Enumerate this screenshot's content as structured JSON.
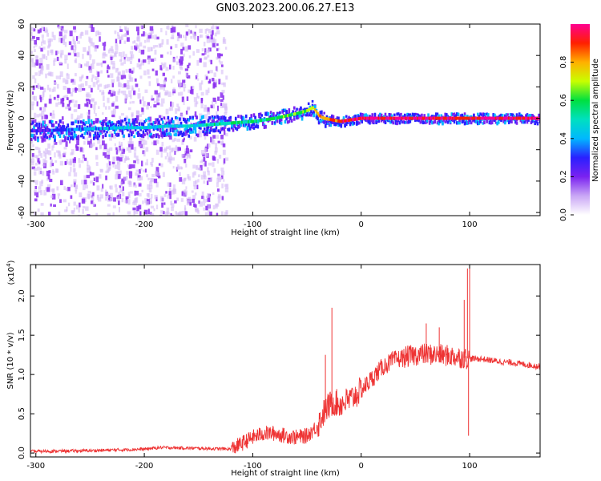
{
  "title": "GN03.2023.200.06.27.E13",
  "chart_data": [
    {
      "type": "heatmap",
      "xlabel": "Height of straight line (km)",
      "ylabel": "Frequency (Hz)",
      "xlim": [
        -305,
        165
      ],
      "ylim": [
        -62,
        60
      ],
      "x_ticks": [
        -300,
        -200,
        -100,
        0,
        100
      ],
      "y_ticks": [
        -60,
        -40,
        -20,
        0,
        20,
        40,
        60
      ],
      "colorbar": {
        "label": "Normalized spectral amplitude",
        "ticks": [
          "0.0",
          "0.2",
          "0.4",
          "0.6",
          "0.8"
        ],
        "range": [
          0,
          1
        ],
        "colormap": [
          "#ffffff",
          "#c9a6f5",
          "#7a22f0",
          "#2a20ff",
          "#00b8ff",
          "#00e0c0",
          "#00e040",
          "#c8ff00",
          "#ffb000",
          "#ff2000",
          "#ff0090"
        ]
      },
      "ridge": {
        "x": [
          -300,
          -260,
          -220,
          -200,
          -180,
          -160,
          -140,
          -120,
          -100,
          -80,
          -60,
          -50,
          -45,
          -40,
          -35,
          -20,
          -10,
          0,
          50,
          100,
          165
        ],
        "freq": [
          -8,
          -7,
          -6,
          -6,
          -5,
          -5,
          -4,
          -3,
          -2,
          0,
          3,
          5,
          7,
          2,
          0,
          -2,
          -1,
          0,
          0,
          0,
          0
        ],
        "amplitude": [
          0.25,
          0.35,
          0.45,
          0.45,
          0.45,
          0.45,
          0.5,
          0.55,
          0.55,
          0.6,
          0.6,
          0.65,
          0.7,
          0.8,
          0.85,
          0.9,
          0.92,
          0.95,
          0.95,
          0.95,
          0.95
        ]
      },
      "noise_region_x": [
        -305,
        -125
      ]
    },
    {
      "type": "line",
      "xlabel": "Height of straight line (km)",
      "ylabel": "SNR (10 * v/v)",
      "y_multiplier": "(x10",
      "y_multiplier_exp": "4",
      "xlim": [
        -305,
        165
      ],
      "ylim": [
        -0.05,
        2.4
      ],
      "x_ticks": [
        -300,
        -200,
        -100,
        0,
        100
      ],
      "y_ticks": [
        "0.0",
        "0.5",
        "1.0",
        "1.5",
        "2.0"
      ],
      "line_color": "#ee3333",
      "series": [
        {
          "x": [
            -305,
            -250,
            -200,
            -185,
            -150,
            -120,
            -110,
            -100,
            -90,
            -80,
            -70,
            -60,
            -50,
            -40,
            -35,
            -30,
            -25,
            -20,
            -10,
            0,
            10,
            20,
            30,
            40,
            50,
            60,
            70,
            80,
            90,
            100,
            110,
            120,
            130,
            140,
            150,
            165
          ],
          "y": [
            0.02,
            0.03,
            0.05,
            0.07,
            0.06,
            0.05,
            0.12,
            0.2,
            0.25,
            0.25,
            0.22,
            0.2,
            0.22,
            0.35,
            0.5,
            0.6,
            0.65,
            0.62,
            0.68,
            0.8,
            0.95,
            1.1,
            1.18,
            1.22,
            1.25,
            1.26,
            1.25,
            1.24,
            1.22,
            1.2,
            1.2,
            1.18,
            1.16,
            1.15,
            1.13,
            1.1
          ]
        }
      ],
      "spikes": [
        {
          "x": -27,
          "y": 1.85
        },
        {
          "x": -33,
          "y": 1.25
        },
        {
          "x": 60,
          "y": 1.65
        },
        {
          "x": 72,
          "y": 1.6
        },
        {
          "x": 95,
          "y": 1.95
        },
        {
          "x": 98,
          "y": 2.35
        },
        {
          "x": 100,
          "y": 2.35
        },
        {
          "x": 99,
          "y": 0.22
        }
      ]
    }
  ]
}
